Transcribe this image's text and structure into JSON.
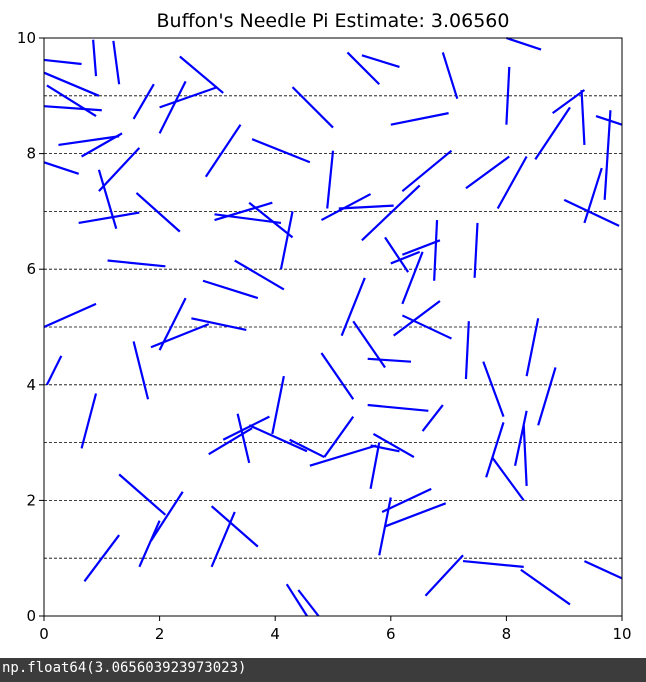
{
  "output": {
    "text": "np.float64(3.065603923973023)"
  },
  "chart_data": {
    "type": "line",
    "title": "Buffon's Needle Pi Estimate: 3.06560",
    "xlabel": "",
    "ylabel": "",
    "xlim": [
      0,
      10
    ],
    "ylim": [
      0,
      10
    ],
    "x_ticks": [
      0,
      2,
      4,
      6,
      8,
      10
    ],
    "y_ticks": [
      0,
      2,
      4,
      6,
      8,
      10
    ],
    "reference_lines_y": [
      1,
      2,
      3,
      4,
      5,
      6,
      7,
      8,
      9
    ],
    "reference_line_color": "#000000",
    "needle_color": "#0000ff",
    "needles": [
      [
        0.0,
        9.62,
        0.65,
        9.55
      ],
      [
        0.85,
        9.97,
        0.9,
        9.34
      ],
      [
        1.2,
        9.95,
        1.3,
        9.2
      ],
      [
        0.0,
        9.4,
        0.95,
        9.0
      ],
      [
        0.05,
        9.18,
        0.9,
        8.65
      ],
      [
        0.0,
        8.82,
        1.0,
        8.75
      ],
      [
        0.25,
        8.15,
        1.3,
        8.3
      ],
      [
        0.65,
        7.95,
        1.35,
        8.35
      ],
      [
        0.0,
        7.85,
        0.6,
        7.65
      ],
      [
        0.95,
        7.35,
        1.65,
        8.1
      ],
      [
        0.95,
        7.72,
        1.25,
        6.7
      ],
      [
        0.6,
        6.8,
        1.65,
        6.98
      ],
      [
        1.6,
        7.32,
        2.35,
        6.65
      ],
      [
        1.55,
        8.6,
        1.9,
        9.2
      ],
      [
        2.0,
        8.35,
        2.45,
        9.25
      ],
      [
        2.0,
        8.8,
        3.0,
        9.15
      ],
      [
        2.35,
        9.68,
        3.1,
        9.05
      ],
      [
        2.8,
        7.6,
        3.4,
        8.5
      ],
      [
        3.6,
        8.25,
        4.6,
        7.85
      ],
      [
        4.3,
        9.15,
        5.0,
        8.45
      ],
      [
        5.25,
        9.75,
        5.8,
        9.2
      ],
      [
        5.5,
        9.7,
        6.15,
        9.5
      ],
      [
        6.9,
        9.75,
        7.15,
        8.95
      ],
      [
        8.0,
        10.0,
        8.6,
        9.8
      ],
      [
        8.0,
        8.5,
        8.05,
        9.5
      ],
      [
        6.0,
        8.5,
        7.0,
        8.7
      ],
      [
        5.1,
        7.05,
        6.05,
        7.1
      ],
      [
        4.8,
        6.85,
        5.65,
        7.3
      ],
      [
        4.9,
        7.05,
        5.0,
        8.05
      ],
      [
        6.2,
        7.35,
        7.05,
        8.05
      ],
      [
        5.5,
        6.5,
        6.5,
        7.45
      ],
      [
        7.3,
        7.4,
        8.05,
        7.95
      ],
      [
        7.85,
        7.05,
        8.35,
        7.95
      ],
      [
        8.5,
        7.9,
        9.1,
        8.8
      ],
      [
        8.8,
        8.7,
        9.35,
        9.1
      ],
      [
        9.3,
        9.1,
        9.35,
        8.15
      ],
      [
        9.55,
        8.65,
        10.0,
        8.5
      ],
      [
        9.7,
        7.2,
        9.8,
        8.75
      ],
      [
        9.65,
        7.75,
        9.35,
        6.8
      ],
      [
        9.0,
        7.2,
        9.95,
        6.75
      ],
      [
        2.95,
        6.85,
        3.95,
        7.15
      ],
      [
        2.95,
        6.95,
        4.1,
        6.8
      ],
      [
        3.55,
        7.15,
        4.3,
        6.55
      ],
      [
        4.1,
        6.0,
        4.3,
        7.0
      ],
      [
        1.1,
        6.15,
        2.1,
        6.05
      ],
      [
        2.75,
        5.8,
        3.7,
        5.5
      ],
      [
        3.3,
        6.15,
        4.15,
        5.65
      ],
      [
        2.55,
        5.15,
        3.5,
        4.95
      ],
      [
        1.85,
        4.65,
        2.85,
        5.05
      ],
      [
        2.0,
        4.6,
        2.45,
        5.5
      ],
      [
        0.0,
        5.0,
        0.9,
        5.4
      ],
      [
        1.55,
        4.75,
        1.8,
        3.75
      ],
      [
        0.05,
        4.0,
        0.3,
        4.5
      ],
      [
        0.65,
        2.9,
        0.9,
        3.85
      ],
      [
        5.15,
        4.85,
        5.55,
        5.85
      ],
      [
        5.35,
        5.1,
        5.9,
        4.3
      ],
      [
        5.6,
        4.45,
        6.35,
        4.4
      ],
      [
        6.05,
        4.85,
        6.85,
        5.45
      ],
      [
        6.2,
        5.2,
        7.05,
        4.8
      ],
      [
        6.2,
        5.4,
        6.55,
        6.3
      ],
      [
        6.0,
        6.1,
        6.5,
        6.3
      ],
      [
        5.9,
        6.55,
        6.3,
        5.95
      ],
      [
        6.2,
        6.25,
        6.85,
        6.5
      ],
      [
        6.75,
        5.8,
        6.8,
        6.85
      ],
      [
        7.45,
        5.85,
        7.5,
        6.8
      ],
      [
        7.3,
        4.1,
        7.35,
        5.1
      ],
      [
        7.6,
        4.4,
        7.95,
        3.45
      ],
      [
        8.35,
        4.15,
        8.55,
        5.15
      ],
      [
        8.55,
        3.3,
        8.85,
        4.3
      ],
      [
        4.8,
        4.55,
        5.35,
        3.75
      ],
      [
        4.25,
        3.05,
        4.85,
        2.75
      ],
      [
        5.6,
        3.65,
        6.65,
        3.55
      ],
      [
        6.55,
        3.2,
        6.9,
        3.65
      ],
      [
        5.7,
        3.15,
        6.4,
        2.75
      ],
      [
        5.65,
        2.95,
        6.15,
        2.85
      ],
      [
        5.65,
        2.2,
        5.8,
        3.0
      ],
      [
        4.85,
        2.75,
        5.35,
        3.45
      ],
      [
        4.6,
        2.6,
        5.75,
        2.95
      ],
      [
        3.95,
        3.15,
        4.15,
        4.15
      ],
      [
        3.55,
        2.65,
        3.35,
        3.5
      ],
      [
        2.85,
        2.8,
        3.6,
        3.25
      ],
      [
        3.1,
        3.05,
        3.9,
        3.45
      ],
      [
        3.55,
        3.3,
        4.55,
        2.85
      ],
      [
        1.3,
        2.45,
        2.1,
        1.75
      ],
      [
        1.65,
        0.85,
        2.0,
        1.65
      ],
      [
        1.85,
        1.3,
        2.4,
        2.15
      ],
      [
        0.7,
        0.6,
        1.3,
        1.4
      ],
      [
        2.9,
        1.9,
        3.7,
        1.2
      ],
      [
        2.9,
        0.85,
        3.3,
        1.8
      ],
      [
        5.8,
        1.05,
        6.0,
        2.05
      ],
      [
        5.85,
        1.8,
        6.7,
        2.2
      ],
      [
        5.9,
        1.55,
        6.95,
        1.95
      ],
      [
        7.65,
        2.4,
        7.95,
        3.35
      ],
      [
        7.75,
        2.75,
        8.3,
        2.0
      ],
      [
        8.15,
        2.6,
        8.35,
        3.55
      ],
      [
        8.35,
        2.25,
        8.3,
        3.3
      ],
      [
        6.6,
        0.35,
        7.25,
        1.05
      ],
      [
        7.25,
        0.95,
        8.3,
        0.85
      ],
      [
        8.25,
        0.8,
        9.1,
        0.2
      ],
      [
        9.35,
        0.95,
        10.0,
        0.65
      ],
      [
        4.2,
        0.55,
        4.55,
        0.0
      ],
      [
        4.4,
        0.45,
        4.75,
        0.0
      ]
    ]
  }
}
